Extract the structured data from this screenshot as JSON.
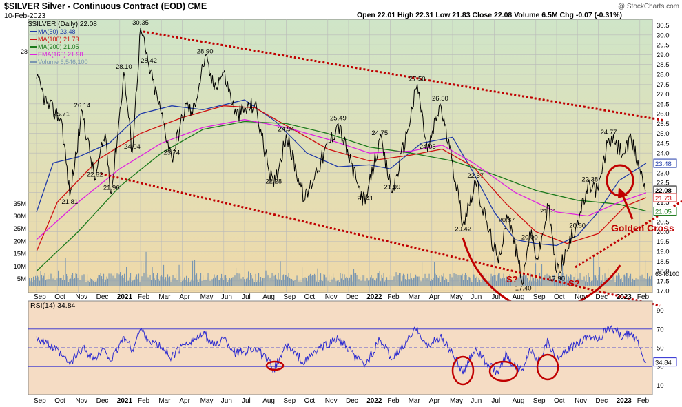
{
  "header": {
    "title": "$SILVER Silver - Continuous Contract (EOD) CME",
    "date": "10-Feb-2023",
    "ohlc": "Open 22.01  High 22.31  Low 21.83  Close 22.08  Volume 6.5M  Chg -0.07 (-0.31%)",
    "credit": "@ StockCharts.com"
  },
  "legend": [
    {
      "label": "$SILVER (Daily) 22.08",
      "color": "#000000"
    },
    {
      "label": "MA(50) 23.48",
      "color": "#1f3aa8"
    },
    {
      "label": "MA(100) 21.73",
      "color": "#d01010"
    },
    {
      "label": "MA(200) 21.05",
      "color": "#1c7a1c"
    },
    {
      "label": "EMA(165) 21.98",
      "color": "#e020e0"
    },
    {
      "label": "Volume 6,546,100",
      "color": "#7a96b0"
    }
  ],
  "chart_data": [
    {
      "type": "line",
      "title": "$SILVER Silver - Continuous Contract (EOD) CME",
      "x_ticks": [
        "Sep",
        "Oct",
        "Nov",
        "Dec",
        "2021",
        "Feb",
        "Mar",
        "Apr",
        "May",
        "Jun",
        "Jul",
        "Aug",
        "Sep",
        "Oct",
        "Nov",
        "Dec",
        "2022",
        "Feb",
        "Mar",
        "Apr",
        "May",
        "Jun",
        "Jul",
        "Aug",
        "Sep",
        "Oct",
        "Nov",
        "Dec",
        "2023",
        "Feb"
      ],
      "y_ticks": [
        "17.0",
        "17.5",
        "18.0",
        "18.5",
        "19.0",
        "19.5",
        "20.0",
        "20.5",
        "21.0",
        "21.5",
        "22.0",
        "22.5",
        "23.0",
        "23.5",
        "24.0",
        "24.5",
        "25.0",
        "25.5",
        "26.0",
        "26.5",
        "27.0",
        "27.5",
        "28.0",
        "28.5",
        "29.0",
        "29.5",
        "30.0",
        "30.5"
      ],
      "ylim": [
        16.9,
        30.8
      ],
      "volume_ticks": [
        "5M",
        "10M",
        "15M",
        "20M",
        "25M",
        "30M",
        "35M"
      ],
      "price_points": [
        {
          "m": 0,
          "v": 27.8
        },
        {
          "m": 0.5,
          "v": 26.5
        },
        {
          "m": 1.2,
          "v": 25.71
        },
        {
          "m": 1.6,
          "v": 21.81
        },
        {
          "m": 2.2,
          "v": 26.14
        },
        {
          "m": 2.8,
          "v": 22.62
        },
        {
          "m": 3.3,
          "v": 25.0
        },
        {
          "m": 3.6,
          "v": 21.96
        },
        {
          "m": 4.2,
          "v": 28.1
        },
        {
          "m": 4.6,
          "v": 24.04
        },
        {
          "m": 5.0,
          "v": 30.35
        },
        {
          "m": 5.4,
          "v": 28.42
        },
        {
          "m": 6.0,
          "v": 26.0
        },
        {
          "m": 6.5,
          "v": 23.74
        },
        {
          "m": 7.2,
          "v": 26.5
        },
        {
          "m": 7.5,
          "v": 26.0
        },
        {
          "m": 8.1,
          "v": 28.9
        },
        {
          "m": 8.5,
          "v": 27.4
        },
        {
          "m": 9.0,
          "v": 28.1
        },
        {
          "m": 9.6,
          "v": 25.9
        },
        {
          "m": 10.5,
          "v": 26.5
        },
        {
          "m": 11.1,
          "v": 23.5
        },
        {
          "m": 11.4,
          "v": 22.28
        },
        {
          "m": 12.0,
          "v": 24.94
        },
        {
          "m": 12.9,
          "v": 21.6
        },
        {
          "m": 13.4,
          "v": 23.0
        },
        {
          "m": 14.5,
          "v": 25.49
        },
        {
          "m": 15.4,
          "v": 22.5
        },
        {
          "m": 15.8,
          "v": 21.41
        },
        {
          "m": 16.5,
          "v": 24.75
        },
        {
          "m": 17.1,
          "v": 21.99
        },
        {
          "m": 17.8,
          "v": 25.0
        },
        {
          "m": 18.3,
          "v": 27.5
        },
        {
          "m": 18.8,
          "v": 24.05
        },
        {
          "m": 19.4,
          "v": 26.5
        },
        {
          "m": 20.0,
          "v": 23.5
        },
        {
          "m": 20.5,
          "v": 20.42
        },
        {
          "m": 21.1,
          "v": 22.57
        },
        {
          "m": 21.6,
          "v": 20.6
        },
        {
          "m": 22.2,
          "v": 18.4
        },
        {
          "m": 22.6,
          "v": 20.87
        },
        {
          "m": 22.9,
          "v": 19.8
        },
        {
          "m": 23.4,
          "v": 17.4
        },
        {
          "m": 23.7,
          "v": 20.0
        },
        {
          "m": 24.1,
          "v": 18.6
        },
        {
          "m": 24.6,
          "v": 21.31
        },
        {
          "m": 25.0,
          "v": 17.9
        },
        {
          "m": 25.5,
          "v": 19.0
        },
        {
          "m": 26.0,
          "v": 20.6
        },
        {
          "m": 26.6,
          "v": 22.38
        },
        {
          "m": 27.0,
          "v": 22.1
        },
        {
          "m": 27.5,
          "v": 24.77
        },
        {
          "m": 28.2,
          "v": 24.0
        },
        {
          "m": 28.6,
          "v": 24.6
        },
        {
          "m": 29.0,
          "v": 23.2
        },
        {
          "m": 29.3,
          "v": 22.08
        }
      ],
      "ma_series": [
        {
          "name": "MA(50)",
          "color": "#1f3aa8",
          "points": [
            {
              "m": 0,
              "v": 21.0
            },
            {
              "m": 0.8,
              "v": 23.5
            },
            {
              "m": 2,
              "v": 23.8
            },
            {
              "m": 3.5,
              "v": 24.5
            },
            {
              "m": 5,
              "v": 26.0
            },
            {
              "m": 6.5,
              "v": 26.4
            },
            {
              "m": 8,
              "v": 26.2
            },
            {
              "m": 10,
              "v": 26.7
            },
            {
              "m": 11.5,
              "v": 25.6
            },
            {
              "m": 13,
              "v": 24.0
            },
            {
              "m": 14.5,
              "v": 23.3
            },
            {
              "m": 16,
              "v": 23.4
            },
            {
              "m": 17,
              "v": 23.2
            },
            {
              "m": 18.5,
              "v": 24.5
            },
            {
              "m": 20,
              "v": 24.8
            },
            {
              "m": 21,
              "v": 23.0
            },
            {
              "m": 22,
              "v": 21.0
            },
            {
              "m": 23,
              "v": 19.6
            },
            {
              "m": 24,
              "v": 19.4
            },
            {
              "m": 25,
              "v": 19.3
            },
            {
              "m": 26,
              "v": 19.8
            },
            {
              "m": 27,
              "v": 21.0
            },
            {
              "m": 28,
              "v": 22.6
            },
            {
              "m": 29.3,
              "v": 23.48
            }
          ]
        },
        {
          "name": "MA(100)",
          "color": "#d01010",
          "points": [
            {
              "m": 0,
              "v": 19.0
            },
            {
              "m": 1,
              "v": 21.5
            },
            {
              "m": 3,
              "v": 23.7
            },
            {
              "m": 5,
              "v": 25.0
            },
            {
              "m": 7,
              "v": 25.8
            },
            {
              "m": 9,
              "v": 26.4
            },
            {
              "m": 10.5,
              "v": 26.3
            },
            {
              "m": 12,
              "v": 25.4
            },
            {
              "m": 14,
              "v": 24.2
            },
            {
              "m": 16,
              "v": 23.6
            },
            {
              "m": 18,
              "v": 23.9
            },
            {
              "m": 19.5,
              "v": 24.2
            },
            {
              "m": 21,
              "v": 23.3
            },
            {
              "m": 22.5,
              "v": 21.5
            },
            {
              "m": 24,
              "v": 20.0
            },
            {
              "m": 25.5,
              "v": 19.4
            },
            {
              "m": 27,
              "v": 19.9
            },
            {
              "m": 28.3,
              "v": 21.3
            },
            {
              "m": 29.3,
              "v": 21.73
            }
          ]
        },
        {
          "name": "MA(200)",
          "color": "#1c7a1c",
          "points": [
            {
              "m": 0,
              "v": 18.0
            },
            {
              "m": 2,
              "v": 20.0
            },
            {
              "m": 4,
              "v": 22.3
            },
            {
              "m": 6,
              "v": 24.0
            },
            {
              "m": 8,
              "v": 25.2
            },
            {
              "m": 10,
              "v": 25.6
            },
            {
              "m": 12,
              "v": 25.5
            },
            {
              "m": 14,
              "v": 25.0
            },
            {
              "m": 16,
              "v": 24.3
            },
            {
              "m": 18,
              "v": 24.0
            },
            {
              "m": 20,
              "v": 23.6
            },
            {
              "m": 22,
              "v": 22.9
            },
            {
              "m": 24,
              "v": 22.1
            },
            {
              "m": 26,
              "v": 21.6
            },
            {
              "m": 28,
              "v": 21.4
            },
            {
              "m": 29.3,
              "v": 21.05
            }
          ]
        },
        {
          "name": "EMA(165)",
          "color": "#e020e0",
          "points": [
            {
              "m": 0,
              "v": 19.6
            },
            {
              "m": 2,
              "v": 21.5
            },
            {
              "m": 4,
              "v": 23.2
            },
            {
              "m": 6,
              "v": 24.5
            },
            {
              "m": 8,
              "v": 25.3
            },
            {
              "m": 10,
              "v": 25.7
            },
            {
              "m": 12,
              "v": 25.3
            },
            {
              "m": 14,
              "v": 24.7
            },
            {
              "m": 16,
              "v": 24.0
            },
            {
              "m": 18,
              "v": 24.1
            },
            {
              "m": 19.5,
              "v": 24.4
            },
            {
              "m": 21,
              "v": 23.5
            },
            {
              "m": 23,
              "v": 22.0
            },
            {
              "m": 25,
              "v": 21.0
            },
            {
              "m": 26.5,
              "v": 20.8
            },
            {
              "m": 28,
              "v": 21.5
            },
            {
              "m": 29.3,
              "v": 21.98
            }
          ]
        }
      ],
      "price_labels": [
        {
          "text": "30.35",
          "m": 5.0,
          "v": 30.35
        },
        {
          "text": "28.42",
          "m": 5.4,
          "v": 28.42
        },
        {
          "text": "28.10",
          "m": 4.2,
          "v": 28.1
        },
        {
          "text": "28.90",
          "m": 8.1,
          "v": 28.9
        },
        {
          "text": "25.71",
          "m": 1.2,
          "v": 25.71
        },
        {
          "text": "26.14",
          "m": 2.2,
          "v": 26.14
        },
        {
          "text": "22.62",
          "m": 2.8,
          "v": 22.62
        },
        {
          "text": "21.81",
          "m": 1.6,
          "v": 21.81
        },
        {
          "text": "21.96",
          "m": 3.6,
          "v": 21.96
        },
        {
          "text": "24.04",
          "m": 4.6,
          "v": 24.04
        },
        {
          "text": "23.74",
          "m": 6.5,
          "v": 23.74
        },
        {
          "text": "24.94",
          "m": 12.0,
          "v": 24.94
        },
        {
          "text": "22.28",
          "m": 11.4,
          "v": 22.28
        },
        {
          "text": "25.49",
          "m": 14.5,
          "v": 25.49
        },
        {
          "text": "21.41",
          "m": 15.8,
          "v": 21.41
        },
        {
          "text": "24.75",
          "m": 16.5,
          "v": 24.75
        },
        {
          "text": "21.99",
          "m": 17.1,
          "v": 21.99
        },
        {
          "text": "27.50",
          "m": 18.3,
          "v": 27.5
        },
        {
          "text": "26.50",
          "m": 19.4,
          "v": 26.5
        },
        {
          "text": "24.05",
          "m": 18.8,
          "v": 24.05
        },
        {
          "text": "22.57",
          "m": 21.1,
          "v": 22.57
        },
        {
          "text": "20.42",
          "m": 20.5,
          "v": 20.42
        },
        {
          "text": "20.87",
          "m": 22.6,
          "v": 20.87
        },
        {
          "text": "20.00",
          "m": 23.7,
          "v": 20.0
        },
        {
          "text": "17.40",
          "m": 23.4,
          "v": 17.4
        },
        {
          "text": "21.31",
          "m": 24.6,
          "v": 21.31
        },
        {
          "text": "17.90",
          "m": 25.0,
          "v": 17.9
        },
        {
          "text": "20.60",
          "m": 26.0,
          "v": 20.6
        },
        {
          "text": "22.38",
          "m": 26.6,
          "v": 22.38
        },
        {
          "text": "24.77",
          "m": 27.5,
          "v": 24.77
        }
      ],
      "right_badges": [
        {
          "text": "23.48",
          "v": 23.48,
          "color": "#1f3aa8"
        },
        {
          "text": "22.08",
          "v": 22.08,
          "color": "#000000"
        },
        {
          "text": "21.73",
          "v": 21.73,
          "color": "#d01010"
        },
        {
          "text": "21.05",
          "v": 21.05,
          "color": "#1c7a1c"
        }
      ],
      "volume_label": "6546100",
      "left_edge_label": "28",
      "annotations": [
        {
          "text": "Golden Cross",
          "color": "#d01010"
        },
        {
          "text": "S?",
          "color": "#c00000"
        },
        {
          "text": "S?",
          "color": "#c00000"
        },
        {
          "text": "H?",
          "color": "#c00000"
        }
      ]
    },
    {
      "type": "line",
      "title": "RSI(14) 34.84",
      "y_ticks": [
        "10",
        "30",
        "50",
        "70",
        "90"
      ],
      "ylim": [
        0,
        100
      ],
      "levels": [
        30,
        50,
        70
      ],
      "last_value_label": "34.84",
      "points": [
        {
          "m": 0,
          "v": 62
        },
        {
          "m": 0.5,
          "v": 55
        },
        {
          "m": 1.2,
          "v": 42
        },
        {
          "m": 1.6,
          "v": 32
        },
        {
          "m": 2.2,
          "v": 50
        },
        {
          "m": 2.8,
          "v": 38
        },
        {
          "m": 3.3,
          "v": 48
        },
        {
          "m": 3.6,
          "v": 36
        },
        {
          "m": 4.2,
          "v": 62
        },
        {
          "m": 4.6,
          "v": 48
        },
        {
          "m": 5.0,
          "v": 70
        },
        {
          "m": 5.4,
          "v": 58
        },
        {
          "m": 6.0,
          "v": 50
        },
        {
          "m": 6.5,
          "v": 40
        },
        {
          "m": 7.2,
          "v": 56
        },
        {
          "m": 8.1,
          "v": 64
        },
        {
          "m": 8.5,
          "v": 52
        },
        {
          "m": 9.0,
          "v": 60
        },
        {
          "m": 9.6,
          "v": 44
        },
        {
          "m": 10.5,
          "v": 50
        },
        {
          "m": 11.1,
          "v": 36
        },
        {
          "m": 11.4,
          "v": 27
        },
        {
          "m": 12.0,
          "v": 52
        },
        {
          "m": 12.9,
          "v": 34
        },
        {
          "m": 13.4,
          "v": 46
        },
        {
          "m": 14.5,
          "v": 60
        },
        {
          "m": 15.4,
          "v": 38
        },
        {
          "m": 15.8,
          "v": 32
        },
        {
          "m": 16.5,
          "v": 58
        },
        {
          "m": 17.1,
          "v": 38
        },
        {
          "m": 17.8,
          "v": 56
        },
        {
          "m": 18.3,
          "v": 72
        },
        {
          "m": 18.8,
          "v": 50
        },
        {
          "m": 19.4,
          "v": 62
        },
        {
          "m": 20.0,
          "v": 44
        },
        {
          "m": 20.5,
          "v": 22
        },
        {
          "m": 21.1,
          "v": 50
        },
        {
          "m": 21.6,
          "v": 34
        },
        {
          "m": 22.2,
          "v": 22
        },
        {
          "m": 22.6,
          "v": 44
        },
        {
          "m": 22.9,
          "v": 32
        },
        {
          "m": 23.4,
          "v": 26
        },
        {
          "m": 23.7,
          "v": 50
        },
        {
          "m": 24.1,
          "v": 36
        },
        {
          "m": 24.6,
          "v": 58
        },
        {
          "m": 25.0,
          "v": 36
        },
        {
          "m": 25.5,
          "v": 46
        },
        {
          "m": 26.0,
          "v": 56
        },
        {
          "m": 26.6,
          "v": 64
        },
        {
          "m": 27.0,
          "v": 58
        },
        {
          "m": 27.5,
          "v": 72
        },
        {
          "m": 28.2,
          "v": 62
        },
        {
          "m": 28.6,
          "v": 66
        },
        {
          "m": 29.0,
          "v": 50
        },
        {
          "m": 29.3,
          "v": 34.84
        }
      ]
    }
  ],
  "colors": {
    "price_bg_top": "#cfe5c8",
    "price_bg_bottom": "#f0d9a8",
    "rsi_bg": "#f5dcc4",
    "trend_line": "#c00000",
    "price": "#000000",
    "volume": "#7a96b0",
    "rsi_line": "#2a2ad0"
  }
}
